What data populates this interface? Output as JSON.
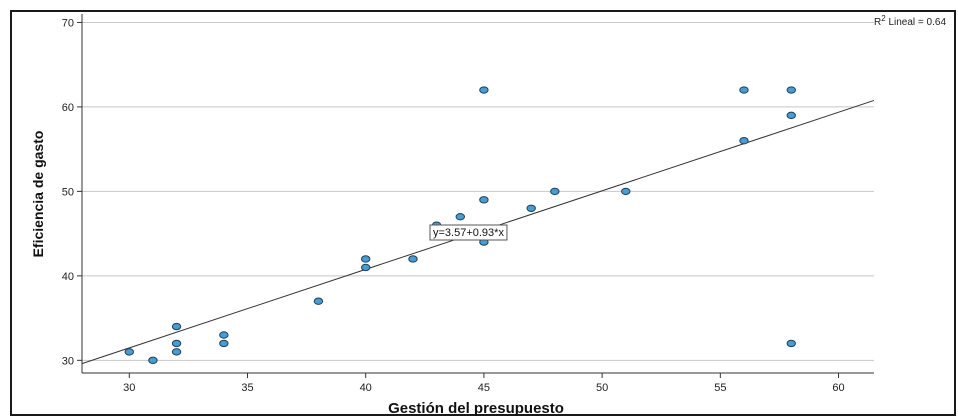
{
  "chart_data": {
    "type": "scatter",
    "xlabel": "Gestión del presupuesto",
    "ylabel": "Eficiencia de gasto",
    "xlim": [
      28,
      61.5
    ],
    "ylim": [
      28.5,
      71
    ],
    "xticks": [
      30,
      35,
      40,
      45,
      50,
      55,
      60
    ],
    "yticks": [
      30,
      40,
      50,
      60,
      70
    ],
    "grid": "horizontal",
    "fit_line": {
      "intercept": 3.57,
      "slope": 0.93,
      "label": "y=3.57+0.93*x"
    },
    "r2_prefix": "R",
    "r2_sup": "2",
    "r2_suffix": " Lineal = 0.64",
    "point_color": "#4a9bd0",
    "points": [
      {
        "x": 30,
        "y": 31
      },
      {
        "x": 31,
        "y": 30
      },
      {
        "x": 32,
        "y": 34
      },
      {
        "x": 32,
        "y": 32
      },
      {
        "x": 32,
        "y": 31
      },
      {
        "x": 34,
        "y": 33
      },
      {
        "x": 34,
        "y": 32
      },
      {
        "x": 38,
        "y": 37
      },
      {
        "x": 40,
        "y": 42
      },
      {
        "x": 40,
        "y": 41
      },
      {
        "x": 42,
        "y": 42
      },
      {
        "x": 43,
        "y": 46
      },
      {
        "x": 44,
        "y": 47
      },
      {
        "x": 45,
        "y": 62
      },
      {
        "x": 45,
        "y": 49
      },
      {
        "x": 45,
        "y": 44
      },
      {
        "x": 47,
        "y": 48
      },
      {
        "x": 48,
        "y": 50
      },
      {
        "x": 51,
        "y": 50
      },
      {
        "x": 56,
        "y": 62
      },
      {
        "x": 56,
        "y": 56
      },
      {
        "x": 58,
        "y": 62
      },
      {
        "x": 58,
        "y": 59
      },
      {
        "x": 58,
        "y": 32
      }
    ]
  }
}
